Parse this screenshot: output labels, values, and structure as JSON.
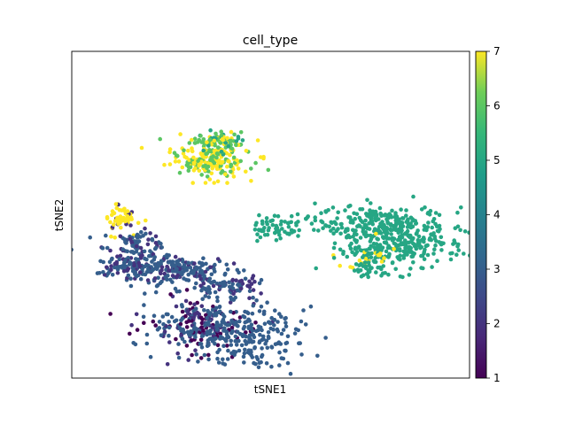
{
  "chart_data": {
    "type": "scatter",
    "title": "cell_type",
    "xlabel": "tSNE1",
    "ylabel": "tSNE2",
    "x_ticks_visible": false,
    "y_ticks_visible": false,
    "grid": false,
    "colorbar": {
      "colormap": "viridis",
      "range": [
        1,
        7
      ],
      "ticks": [
        "1",
        "2",
        "3",
        "4",
        "5",
        "6",
        "7"
      ],
      "placement": "right"
    },
    "clusters": [
      {
        "x": 35,
        "y": 67,
        "spread_x": 5,
        "spread_y": 3,
        "n": 210,
        "values": [
          6,
          7,
          7,
          6,
          7
        ]
      },
      {
        "x": 36,
        "y": 72,
        "spread_x": 3,
        "spread_y": 2,
        "n": 80,
        "values": [
          6,
          6,
          5,
          7
        ]
      },
      {
        "x": 12,
        "y": 49,
        "spread_x": 2,
        "spread_y": 2,
        "n": 60,
        "values": [
          7,
          7,
          2,
          7
        ]
      },
      {
        "x": 16,
        "y": 41,
        "spread_x": 4,
        "spread_y": 2,
        "n": 80,
        "values": [
          3,
          2,
          3
        ]
      },
      {
        "x": 15,
        "y": 34,
        "spread_x": 5,
        "spread_y": 2,
        "n": 140,
        "values": [
          3,
          3,
          2,
          3
        ]
      },
      {
        "x": 28,
        "y": 33,
        "spread_x": 6,
        "spread_y": 2,
        "n": 160,
        "values": [
          3,
          3,
          3,
          2
        ]
      },
      {
        "x": 39,
        "y": 28,
        "spread_x": 4,
        "spread_y": 2,
        "n": 90,
        "values": [
          3,
          3,
          2
        ]
      },
      {
        "x": 33,
        "y": 16,
        "spread_x": 7,
        "spread_y": 4,
        "n": 260,
        "values": [
          3,
          3,
          2,
          1
        ]
      },
      {
        "x": 45,
        "y": 12,
        "spread_x": 6,
        "spread_y": 5,
        "n": 200,
        "values": [
          3,
          3,
          3
        ]
      },
      {
        "x": 53,
        "y": 46,
        "spread_x": 4,
        "spread_y": 2,
        "n": 70,
        "values": [
          5,
          5
        ]
      },
      {
        "x": 78,
        "y": 47,
        "spread_x": 8,
        "spread_y": 3,
        "n": 260,
        "values": [
          5,
          5,
          5
        ]
      },
      {
        "x": 84,
        "y": 40,
        "spread_x": 7,
        "spread_y": 3,
        "n": 180,
        "values": [
          5,
          5
        ]
      },
      {
        "x": 75,
        "y": 37,
        "spread_x": 4,
        "spread_y": 2,
        "n": 60,
        "values": [
          5,
          5,
          7
        ]
      },
      {
        "x": 76,
        "y": 33,
        "spread_x": 3,
        "spread_y": 1,
        "n": 25,
        "values": [
          5,
          5
        ]
      }
    ]
  }
}
